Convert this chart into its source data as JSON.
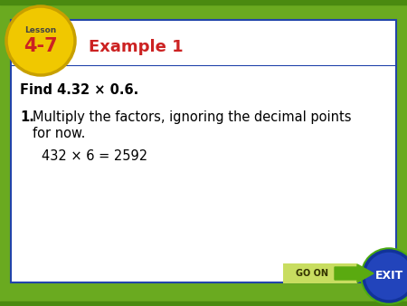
{
  "bg_outer": "#6aaa20",
  "bg_inner_stripe": "#4a8a10",
  "white_bg": "#ffffff",
  "blue_border": "#2244aa",
  "title_text": "Example 1",
  "title_color": "#cc2222",
  "find_text": "Find 4.32 × 0.6.",
  "step1_num": "1.",
  "step1_line1": "Multiply the factors, ignoring the decimal points",
  "step1_line2": "   for now.",
  "step1_math": "432 × 6 = 2592",
  "lesson_label": "Lesson",
  "lesson_number": "4-7",
  "yellow_color": "#f0c800",
  "yellow_border": "#c8a000",
  "lesson_num_color": "#cc2222",
  "go_on_rect_color": "#c8dd60",
  "go_on_arrow_color": "#5aaa10",
  "go_on_text": "GO ON",
  "exit_bg": "#2244bb",
  "exit_border": "#113399",
  "exit_text": "EXIT",
  "exit_text_color": "#ffffff",
  "text_black": "#000000"
}
